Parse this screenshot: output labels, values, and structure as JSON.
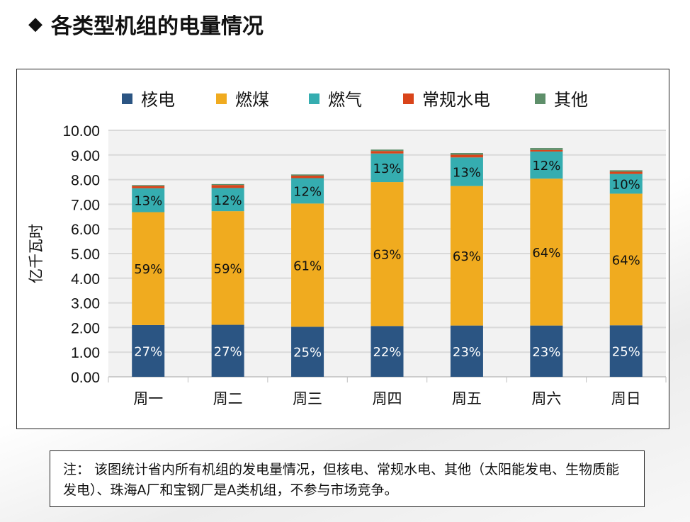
{
  "title": "各类型机组的电量情况",
  "note": "注： 该图统计省内所有机组的发电量情况，但核电、常规水电、其他（太阳能发电、生物质能发电）、珠海A厂和宝钢厂是A类机组，不参与市场竞争。",
  "chart_data": {
    "type": "bar",
    "stacked": true,
    "categories": [
      "周一",
      "周二",
      "周三",
      "周四",
      "周五",
      "周六",
      "周日"
    ],
    "ylabel": "亿千瓦时",
    "ylim": [
      0,
      10
    ],
    "yticks": [
      "0.00",
      "1.00",
      "2.00",
      "3.00",
      "4.00",
      "5.00",
      "6.00",
      "7.00",
      "8.00",
      "9.00",
      "10.00"
    ],
    "grid": true,
    "legend": "top",
    "series": [
      {
        "name": "核电",
        "color": "#2b5583",
        "values": [
          2.1,
          2.11,
          2.03,
          2.06,
          2.08,
          2.08,
          2.09
        ],
        "labels": [
          "27%",
          "27%",
          "25%",
          "22%",
          "23%",
          "23%",
          "25%"
        ],
        "label_color": "#ffffff"
      },
      {
        "name": "燃煤",
        "color": "#f0ab1f",
        "values": [
          4.58,
          4.61,
          5.0,
          5.84,
          5.66,
          5.96,
          5.34
        ],
        "labels": [
          "59%",
          "59%",
          "61%",
          "63%",
          "63%",
          "64%",
          "64%"
        ],
        "label_color": "#111111"
      },
      {
        "name": "燃气",
        "color": "#35adb0",
        "values": [
          0.97,
          0.94,
          1.03,
          1.16,
          1.16,
          1.1,
          0.8
        ],
        "labels": [
          "13%",
          "12%",
          "12%",
          "13%",
          "13%",
          "12%",
          "10%"
        ],
        "label_color": "#111111"
      },
      {
        "name": "常规水电",
        "color": "#d9441a",
        "values": [
          0.09,
          0.12,
          0.1,
          0.1,
          0.11,
          0.06,
          0.09
        ]
      },
      {
        "name": "其他",
        "color": "#5e8f6a",
        "values": [
          0.04,
          0.04,
          0.05,
          0.06,
          0.07,
          0.08,
          0.06
        ]
      }
    ]
  }
}
